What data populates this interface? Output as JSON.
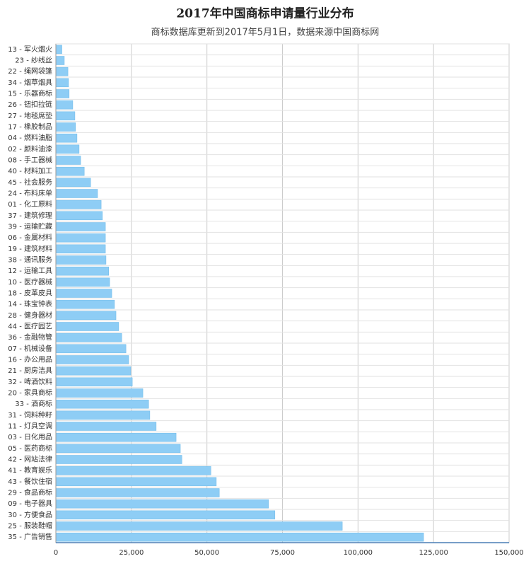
{
  "chart_data": {
    "type": "hbar",
    "title": "2017年中国商标申请量行业分布",
    "subtitle": "商标数据库更新到2017年5月1日，数据来源中国商标网",
    "categories": [
      "13 - 军火烟火",
      "23 - 纱线丝",
      "22 - 绳网袋篷",
      "34 - 烟草烟具",
      "15 - 乐器商标",
      "26 - 钮扣拉链",
      "27 - 地毯席垫",
      "17 - 橡胶制品",
      "04 - 燃料油脂",
      "02 - 颜料油漆",
      "08 - 手工器械",
      "40 - 材料加工",
      "45 - 社会服务",
      "24 - 布料床单",
      "01 - 化工原料",
      "37 - 建筑修理",
      "39 - 运输贮藏",
      "06 - 金属材料",
      "19 - 建筑材料",
      "38 - 通讯服务",
      "12 - 运输工具",
      "10 - 医疗器械",
      "18 - 皮革皮具",
      "14 - 珠宝钟表",
      "28 - 健身器材",
      "44 - 医疗园艺",
      "36 - 金融物管",
      "07 - 机械设备",
      "16 - 办公用品",
      "21 - 厨房洁具",
      "32 - 啤酒饮料",
      "20 - 家具商标",
      "33 - 酒商标",
      "31 - 饲料种籽",
      "11 - 灯具空调",
      "03 - 日化用品",
      "05 - 医药商标",
      "42 - 网站法律",
      "41 - 教育娱乐",
      "43 - 餐饮住宿",
      "29 - 食品商标",
      "09 - 电子器具",
      "30 - 方便食品",
      "25 - 服装鞋帽",
      "35 - 广告销售"
    ],
    "values": [
      2000,
      2800,
      4000,
      4200,
      4400,
      5600,
      6300,
      6500,
      7000,
      7700,
      8200,
      9400,
      11500,
      13800,
      15000,
      15400,
      16400,
      16400,
      16400,
      16600,
      17500,
      17800,
      18500,
      19400,
      19900,
      20800,
      21800,
      23200,
      24100,
      24800,
      25300,
      28800,
      30700,
      31100,
      33200,
      39800,
      41200,
      41700,
      51300,
      53100,
      54100,
      70400,
      72500,
      94800,
      121700
    ],
    "color": "#8ecdf5",
    "xlim": [
      0,
      150000
    ],
    "xticks": [
      0,
      {
        "value": 25000,
        "label": "25,000"
      },
      {
        "value": 50000,
        "label": "50,000"
      },
      {
        "value": 75000,
        "label": "75,000"
      },
      {
        "value": 100000,
        "label": "100,000"
      },
      {
        "value": 125000,
        "label": "125,000"
      },
      {
        "value": 150000,
        "label": "150,000"
      }
    ],
    "grid": true
  }
}
